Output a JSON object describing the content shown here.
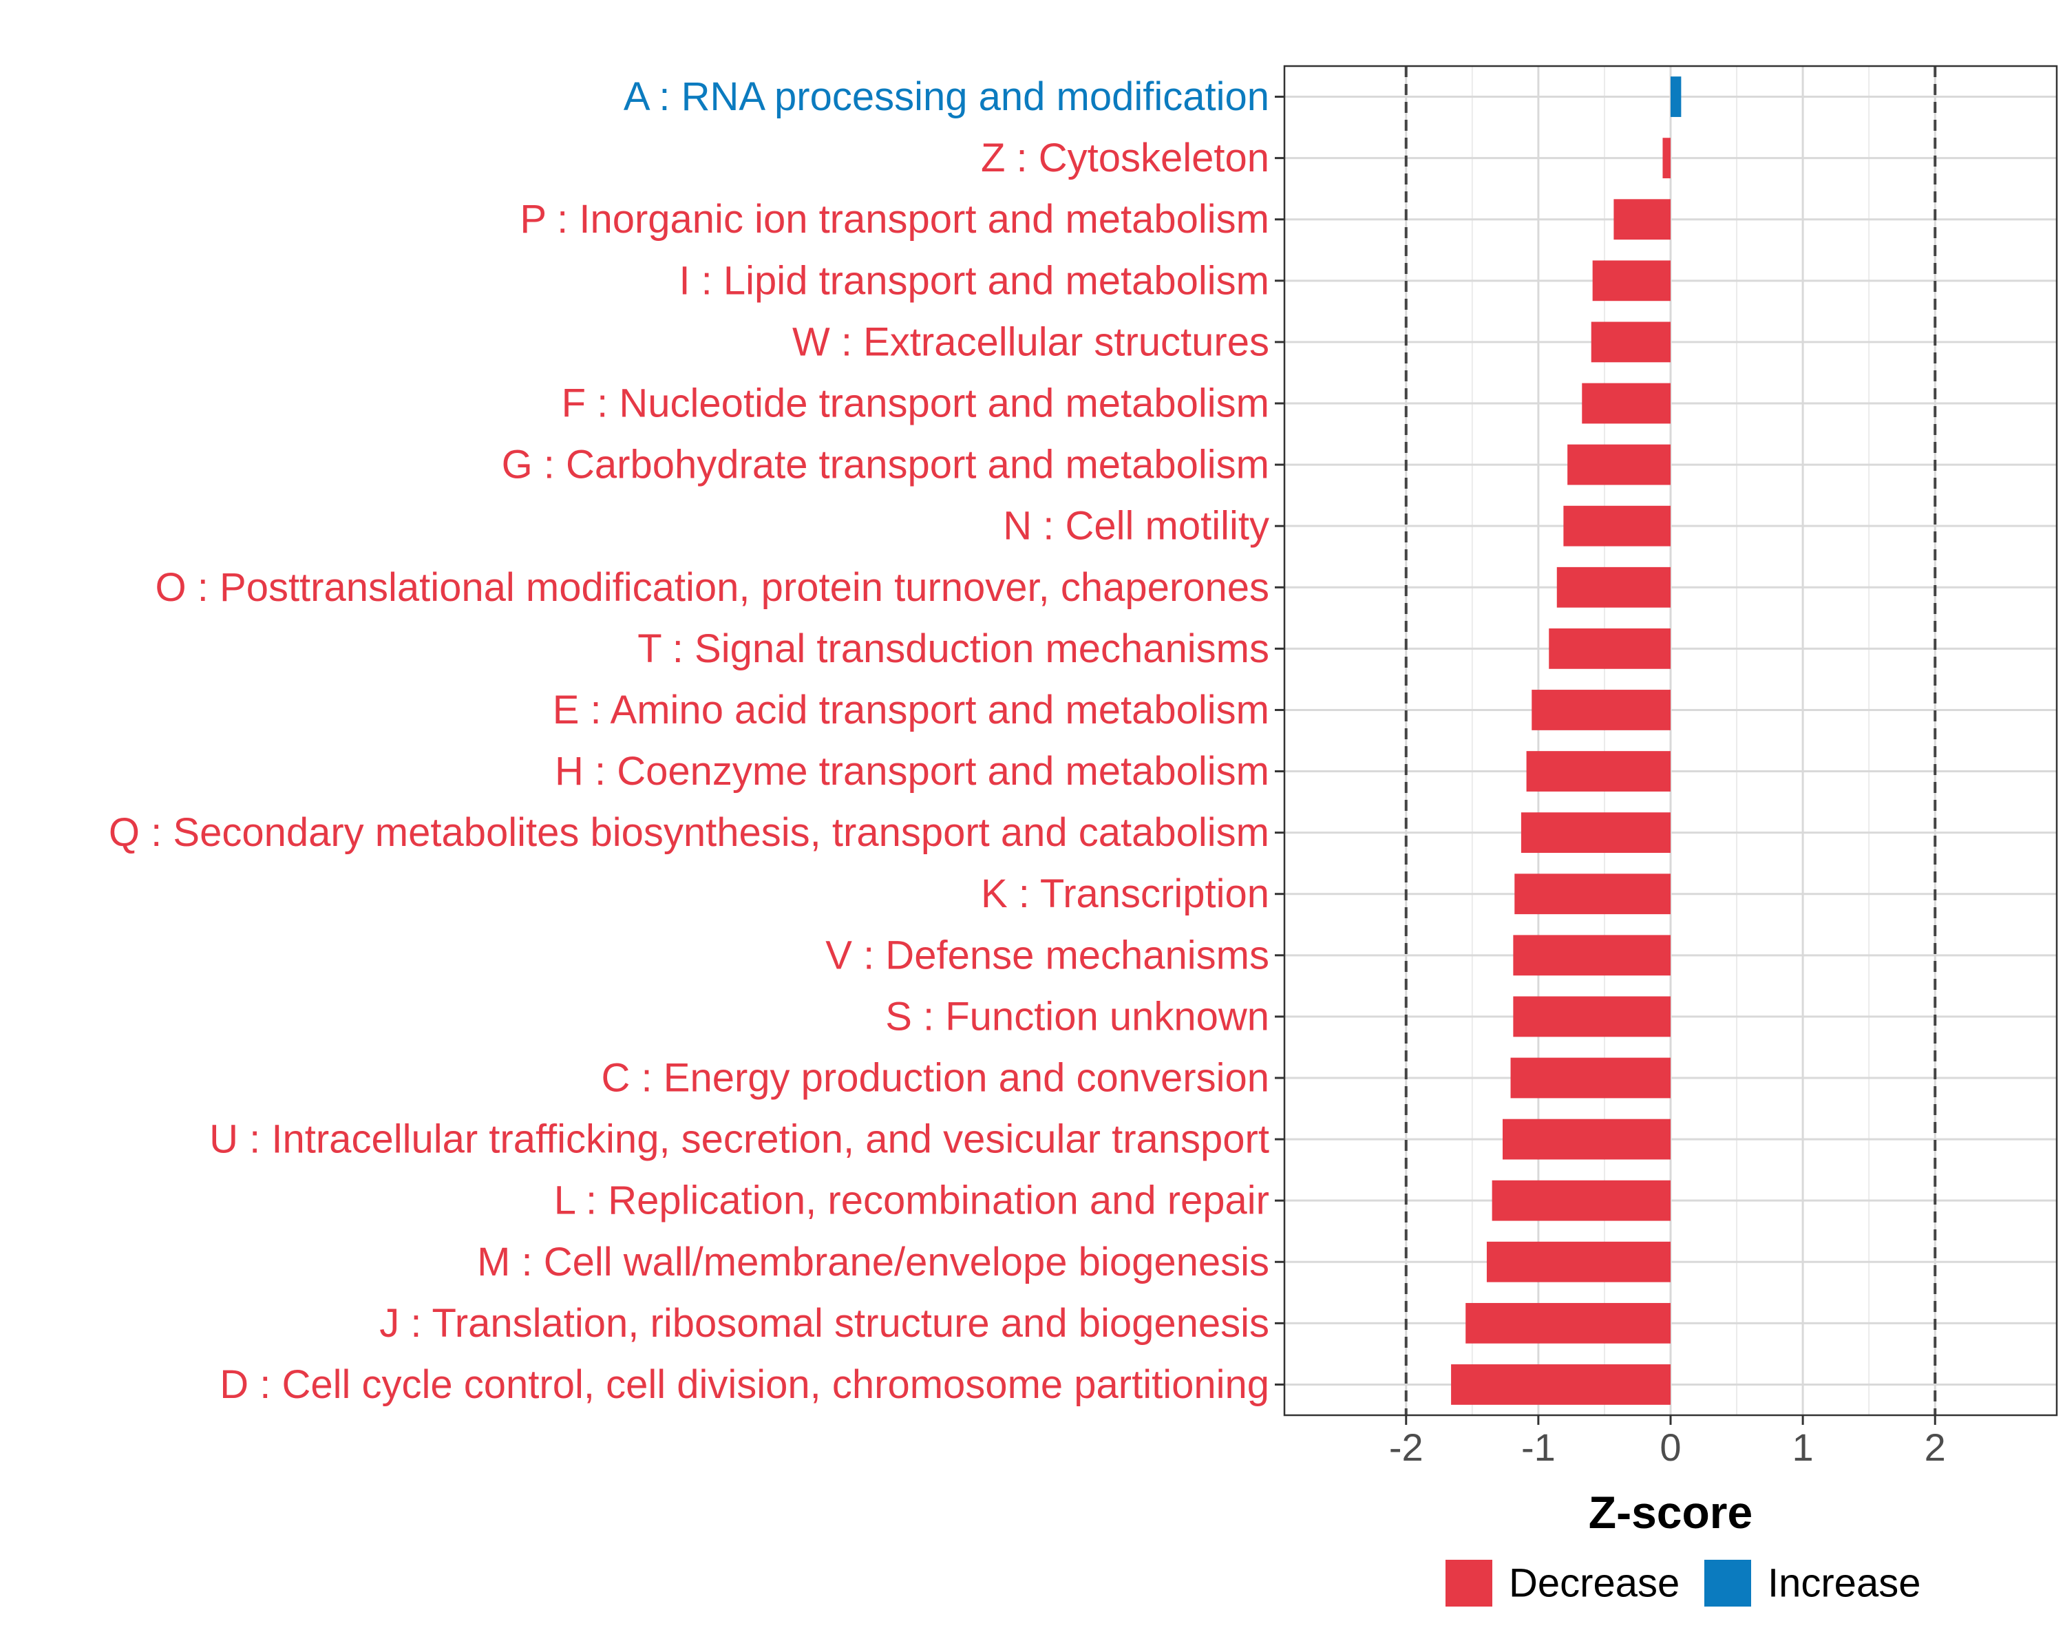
{
  "chart_data": {
    "type": "bar",
    "orientation": "horizontal",
    "xlabel": "Z-score",
    "ylabel": "",
    "xlim": [
      -2.92,
      2.92
    ],
    "x_ticks": [
      -2,
      -1,
      0,
      1,
      2
    ],
    "x_tick_labels": [
      "-2",
      "-1",
      "0",
      "1",
      "2"
    ],
    "threshold_lines": [
      -2,
      2
    ],
    "grid": true,
    "categories": [
      "A : RNA processing and modification",
      "Z : Cytoskeleton",
      "P : Inorganic ion transport and metabolism",
      "I : Lipid transport and metabolism",
      "W : Extracellular structures",
      "F : Nucleotide transport and metabolism",
      "G : Carbohydrate transport and metabolism",
      "N : Cell motility",
      "O : Posttranslational modification, protein turnover, chaperones",
      "T : Signal transduction mechanisms",
      "E : Amino acid transport and metabolism",
      "H : Coenzyme transport and metabolism",
      "Q : Secondary metabolites biosynthesis, transport and catabolism",
      "K : Transcription",
      "V : Defense mechanisms",
      "S : Function unknown",
      "C : Energy production and conversion",
      "U : Intracellular trafficking, secretion, and vesicular transport",
      "L : Replication, recombination and repair",
      "M : Cell wall/membrane/envelope biogenesis",
      "J : Translation, ribosomal structure and biogenesis",
      "D : Cell cycle control, cell division, chromosome partitioning"
    ],
    "values": [
      0.08,
      -0.06,
      -0.43,
      -0.59,
      -0.6,
      -0.67,
      -0.78,
      -0.81,
      -0.86,
      -0.92,
      -1.05,
      -1.09,
      -1.13,
      -1.18,
      -1.19,
      -1.19,
      -1.21,
      -1.27,
      -1.35,
      -1.39,
      -1.55,
      -1.66
    ],
    "groups": [
      "Increase",
      "Decrease",
      "Decrease",
      "Decrease",
      "Decrease",
      "Decrease",
      "Decrease",
      "Decrease",
      "Decrease",
      "Decrease",
      "Decrease",
      "Decrease",
      "Decrease",
      "Decrease",
      "Decrease",
      "Decrease",
      "Decrease",
      "Decrease",
      "Decrease",
      "Decrease",
      "Decrease",
      "Decrease"
    ],
    "legend": [
      {
        "label": "Decrease",
        "color": "#e63946"
      },
      {
        "label": "Increase",
        "color": "#0b7bbf"
      }
    ],
    "legend_position": "bottom"
  }
}
